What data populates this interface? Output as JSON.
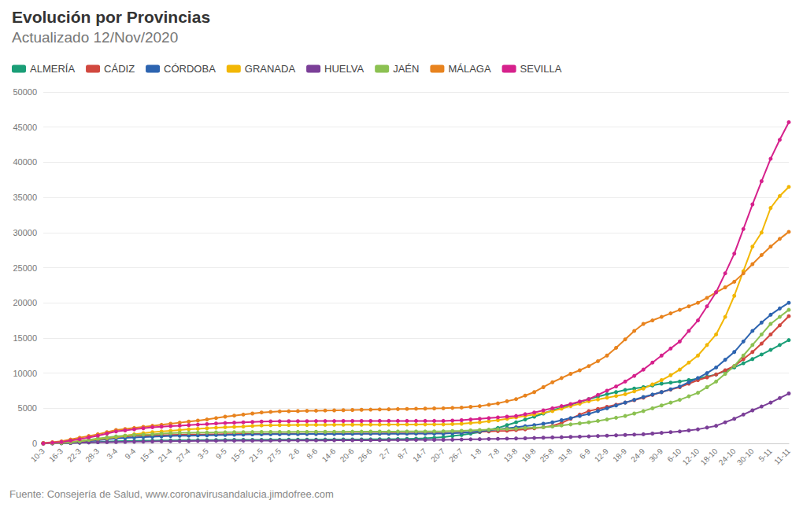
{
  "chart_data": {
    "type": "line",
    "title": "Evolución por Provincias",
    "subtitle": "Actualizado 12/Nov/2020",
    "source": "Fuente: Consejería de Salud, www.coronavirusandalucia.jimdofree.com",
    "marker": "circle",
    "line_style": "solid",
    "grid": true,
    "legend": "top-left",
    "ylim": [
      0,
      50000
    ],
    "yticks": [
      0,
      5000,
      10000,
      15000,
      20000,
      25000,
      30000,
      35000,
      40000,
      45000,
      50000
    ],
    "categories": [
      "10-3",
      null,
      "16-3",
      null,
      "22-3",
      null,
      "28-3",
      null,
      "3-4",
      null,
      "9-4",
      null,
      "15-4",
      null,
      "21-4",
      null,
      "27-4",
      null,
      "3-5",
      null,
      "9-5",
      null,
      "15-5",
      null,
      "21-5",
      null,
      "27-5",
      null,
      "2-6",
      null,
      "8-6",
      null,
      "14-6",
      null,
      "20-6",
      null,
      "26-6",
      null,
      "2-7",
      null,
      "8-7",
      null,
      "14-7",
      null,
      "20-7",
      null,
      "26-7",
      null,
      "1-8",
      null,
      "7-8",
      null,
      "13-8",
      null,
      "19-8",
      null,
      "25-8",
      null,
      "31-8",
      null,
      "6-9",
      null,
      "12-9",
      null,
      "18-9",
      null,
      "24-9",
      null,
      "30-9",
      null,
      "6-10",
      null,
      "12-10",
      null,
      "18-10",
      null,
      "24-10",
      null,
      "30-10",
      null,
      "5-11",
      null,
      "11-11"
    ],
    "series": [
      {
        "name": "ALMERÍA",
        "color": "#1a9e77",
        "values": [
          0,
          15,
          30,
          60,
          100,
          150,
          200,
          250,
          300,
          330,
          350,
          380,
          400,
          410,
          420,
          440,
          450,
          460,
          470,
          480,
          490,
          500,
          500,
          510,
          510,
          520,
          520,
          530,
          530,
          540,
          540,
          550,
          550,
          560,
          560,
          570,
          580,
          590,
          600,
          620,
          640,
          680,
          720,
          800,
          900,
          1050,
          1200,
          1400,
          1600,
          1900,
          2200,
          2600,
          3000,
          3400,
          3800,
          4250,
          4700,
          5100,
          5500,
          5900,
          6300,
          6650,
          7000,
          7300,
          7600,
          7800,
          8000,
          8250,
          8500,
          8650,
          8800,
          9000,
          9200,
          9500,
          9800,
          10300,
          10800,
          11400,
          12000,
          12650,
          13300,
          14000,
          14700
        ]
      },
      {
        "name": "CÁDIZ",
        "color": "#d1483f",
        "values": [
          0,
          20,
          50,
          150,
          300,
          450,
          600,
          750,
          900,
          980,
          1050,
          1100,
          1150,
          1180,
          1200,
          1230,
          1250,
          1270,
          1280,
          1300,
          1310,
          1320,
          1330,
          1340,
          1350,
          1350,
          1360,
          1360,
          1370,
          1370,
          1380,
          1380,
          1390,
          1390,
          1400,
          1400,
          1410,
          1410,
          1420,
          1420,
          1430,
          1430,
          1440,
          1450,
          1460,
          1500,
          1550,
          1600,
          1650,
          1700,
          1750,
          1800,
          1900,
          2000,
          2150,
          2300,
          2500,
          2900,
          3500,
          4100,
          4600,
          4900,
          5200,
          5500,
          5800,
          6150,
          6500,
          6900,
          7300,
          7650,
          8000,
          8500,
          9000,
          9400,
          9800,
          10400,
          11000,
          12000,
          13000,
          14200,
          15500,
          16800,
          18100
        ]
      },
      {
        "name": "CÓRDOBA",
        "color": "#2d64b0",
        "values": [
          0,
          20,
          50,
          120,
          200,
          320,
          450,
          580,
          700,
          780,
          850,
          900,
          950,
          1000,
          1050,
          1080,
          1100,
          1130,
          1150,
          1180,
          1200,
          1230,
          1250,
          1280,
          1300,
          1310,
          1310,
          1320,
          1320,
          1330,
          1330,
          1340,
          1340,
          1350,
          1350,
          1360,
          1360,
          1370,
          1370,
          1380,
          1380,
          1390,
          1390,
          1400,
          1400,
          1450,
          1500,
          1600,
          1700,
          1850,
          2000,
          2150,
          2300,
          2450,
          2600,
          2800,
          3000,
          3300,
          3600,
          3900,
          4200,
          4600,
          5000,
          5400,
          5800,
          6200,
          6600,
          6950,
          7300,
          7700,
          8100,
          8700,
          9300,
          10000,
          10800,
          11900,
          13000,
          14500,
          16000,
          17200,
          18300,
          19200,
          20000
        ]
      },
      {
        "name": "GRANADA",
        "color": "#f2b705",
        "values": [
          0,
          50,
          100,
          200,
          300,
          450,
          600,
          750,
          900,
          1100,
          1300,
          1450,
          1600,
          1700,
          1800,
          1900,
          2000,
          2080,
          2150,
          2230,
          2300,
          2350,
          2400,
          2480,
          2550,
          2580,
          2600,
          2610,
          2620,
          2630,
          2640,
          2640,
          2650,
          2650,
          2660,
          2660,
          2670,
          2670,
          2680,
          2680,
          2690,
          2690,
          2700,
          2700,
          2700,
          2750,
          2800,
          2900,
          3000,
          3150,
          3300,
          3500,
          3700,
          3900,
          4100,
          4350,
          4600,
          4950,
          5300,
          5650,
          6000,
          6250,
          6500,
          6750,
          7000,
          7400,
          7800,
          8400,
          9000,
          9700,
          10500,
          11500,
          12500,
          14000,
          15500,
          18000,
          21000,
          24500,
          28000,
          30000,
          33500,
          35200,
          36500
        ]
      },
      {
        "name": "HUELVA",
        "color": "#7b3f98",
        "values": [
          0,
          10,
          20,
          50,
          100,
          130,
          160,
          180,
          200,
          220,
          240,
          260,
          280,
          300,
          320,
          330,
          340,
          350,
          360,
          370,
          380,
          380,
          390,
          390,
          400,
          400,
          410,
          410,
          420,
          420,
          430,
          430,
          440,
          440,
          450,
          450,
          460,
          460,
          470,
          480,
          480,
          490,
          490,
          500,
          500,
          520,
          550,
          580,
          600,
          630,
          650,
          680,
          700,
          730,
          770,
          810,
          850,
          880,
          920,
          960,
          1000,
          1050,
          1100,
          1150,
          1200,
          1250,
          1300,
          1400,
          1500,
          1600,
          1700,
          1850,
          2000,
          2250,
          2500,
          3000,
          3500,
          4100,
          4700,
          5250,
          5800,
          6450,
          7100
        ]
      },
      {
        "name": "JAÉN",
        "color": "#8cc152",
        "values": [
          0,
          20,
          50,
          150,
          300,
          500,
          700,
          850,
          1000,
          1100,
          1200,
          1250,
          1300,
          1400,
          1450,
          1500,
          1500,
          1530,
          1550,
          1570,
          1580,
          1590,
          1600,
          1610,
          1620,
          1620,
          1630,
          1630,
          1640,
          1640,
          1650,
          1650,
          1660,
          1660,
          1670,
          1670,
          1680,
          1680,
          1690,
          1690,
          1700,
          1700,
          1700,
          1710,
          1720,
          1760,
          1800,
          1850,
          1900,
          1950,
          2000,
          2050,
          2100,
          2200,
          2250,
          2300,
          2400,
          2550,
          2700,
          2850,
          3000,
          3200,
          3400,
          3650,
          3900,
          4250,
          4600,
          5000,
          5400,
          5800,
          6200,
          6700,
          7200,
          8000,
          8800,
          9900,
          11000,
          12500,
          14000,
          15500,
          17000,
          18000,
          19000
        ]
      },
      {
        "name": "MÁLAGA",
        "color": "#e8831e",
        "values": [
          50,
          170,
          300,
          550,
          800,
          1050,
          1300,
          1600,
          1900,
          2050,
          2200,
          2350,
          2500,
          2650,
          2800,
          2950,
          3100,
          3250,
          3400,
          3600,
          3800,
          3950,
          4100,
          4250,
          4400,
          4480,
          4550,
          4580,
          4600,
          4630,
          4650,
          4680,
          4700,
          4730,
          4750,
          4780,
          4800,
          4830,
          4850,
          4880,
          4900,
          4930,
          4950,
          4980,
          5000,
          5050,
          5100,
          5200,
          5300,
          5500,
          5700,
          6000,
          6300,
          6800,
          7300,
          8000,
          8700,
          9300,
          9900,
          10400,
          11000,
          11700,
          12500,
          13600,
          14800,
          16000,
          17000,
          17500,
          18000,
          18500,
          19000,
          19500,
          20000,
          20700,
          21500,
          22200,
          23000,
          24200,
          25500,
          26800,
          28000,
          29100,
          30100
        ]
      },
      {
        "name": "SEVILLA",
        "color": "#d6218c",
        "values": [
          0,
          100,
          200,
          400,
          600,
          850,
          1100,
          1400,
          1700,
          1850,
          2000,
          2150,
          2300,
          2380,
          2450,
          2530,
          2600,
          2680,
          2750,
          2830,
          2900,
          2950,
          3000,
          3050,
          3100,
          3130,
          3150,
          3160,
          3170,
          3170,
          3180,
          3180,
          3180,
          3190,
          3190,
          3190,
          3190,
          3200,
          3200,
          3200,
          3200,
          3200,
          3200,
          3200,
          3200,
          3250,
          3300,
          3400,
          3500,
          3600,
          3700,
          3800,
          3900,
          4150,
          4400,
          4700,
          5000,
          5300,
          5600,
          5950,
          6300,
          6900,
          7500,
          8100,
          8800,
          9600,
          10500,
          11500,
          12500,
          13500,
          14500,
          16000,
          17500,
          19500,
          21500,
          24200,
          27000,
          30500,
          34000,
          37300,
          40500,
          43200,
          45700
        ]
      }
    ]
  }
}
